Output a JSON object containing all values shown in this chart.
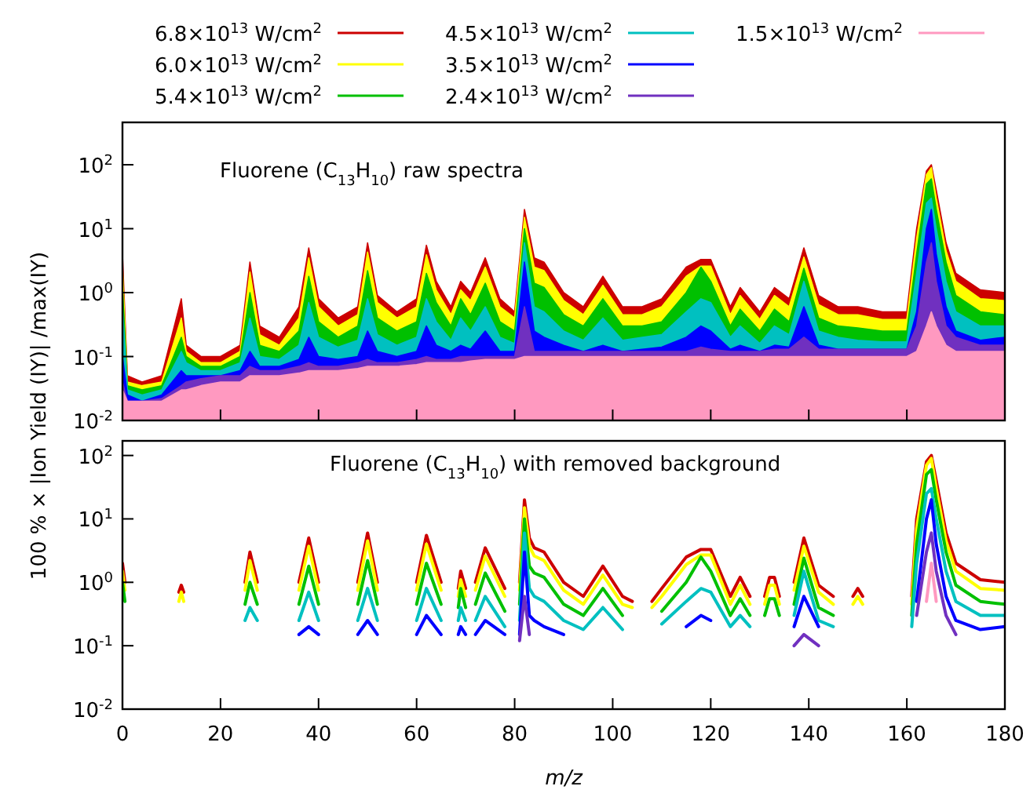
{
  "chart_data": [
    {
      "type": "area",
      "annotations": [
        "Fluorene (C$_{13}$H$_{10}$) raw spectra"
      ],
      "ylabel": "100 % × |Ion Yield (IY)| /max(IY)",
      "log": "y",
      "legend": "top",
      "tick_labels": "y",
      "xlim": [
        0,
        180
      ],
      "xticks": [
        0,
        20,
        40,
        60,
        80,
        100,
        120,
        140,
        160,
        180
      ],
      "ylim": [
        0.01,
        460
      ],
      "yticks": [
        {
          "value": 0.01,
          "label": "10$^{-2}$"
        },
        {
          "value": 0.1,
          "label": "10$^{-1}$"
        },
        {
          "value": 1,
          "label": "10$^{0}$"
        },
        {
          "value": 10,
          "label": "10$^{1}$"
        },
        {
          "value": 100,
          "label": "10$^{2}$"
        }
      ],
      "x": [
        0,
        1,
        4,
        8,
        12,
        13,
        16,
        20,
        24,
        26,
        28,
        32,
        36,
        38,
        40,
        44,
        48,
        50,
        52,
        56,
        60,
        62,
        64,
        67,
        69,
        71,
        74,
        77,
        80,
        82,
        84,
        86,
        90,
        94,
        98,
        102,
        106,
        110,
        115,
        118,
        120,
        124,
        126,
        130,
        133,
        136,
        139,
        142,
        146,
        150,
        155,
        160,
        162,
        164,
        165,
        166,
        168,
        170,
        175,
        180
      ],
      "series": [
        {
          "name": "6.8×10$^{13}$ W/cm$^{2}$",
          "color": "#cc0000",
          "values": [
            3.9,
            0.05,
            0.04,
            0.05,
            0.8,
            0.15,
            0.1,
            0.1,
            0.15,
            3,
            0.3,
            0.2,
            0.6,
            5,
            0.8,
            0.4,
            0.6,
            6,
            0.9,
            0.5,
            0.8,
            5.5,
            1.5,
            0.6,
            1.5,
            1,
            3.5,
            0.8,
            0.5,
            20,
            3.5,
            3,
            1,
            0.6,
            1.8,
            0.6,
            0.6,
            0.8,
            2.5,
            3.3,
            3.3,
            0.6,
            1.2,
            0.5,
            1.2,
            0.8,
            5,
            0.9,
            0.6,
            0.6,
            0.5,
            0.5,
            10,
            80,
            100,
            40,
            6,
            2,
            1.1,
            1
          ]
        },
        {
          "name": "6.0×10$^{13}$ W/cm$^{2}$",
          "color": "#ffff00",
          "values": [
            2.5,
            0.04,
            0.035,
            0.04,
            0.4,
            0.12,
            0.08,
            0.08,
            0.12,
            2.1,
            0.22,
            0.15,
            0.4,
            3.5,
            0.6,
            0.3,
            0.45,
            4.3,
            0.7,
            0.4,
            0.6,
            3.9,
            1.1,
            0.45,
            1.1,
            0.75,
            2.5,
            0.6,
            0.4,
            15,
            2.5,
            2.2,
            0.75,
            0.45,
            1.3,
            0.45,
            0.45,
            0.6,
            1.8,
            2.6,
            2.6,
            0.45,
            0.9,
            0.38,
            0.9,
            0.6,
            3.6,
            0.65,
            0.45,
            0.45,
            0.38,
            0.38,
            7,
            70,
            90,
            30,
            4.5,
            1.5,
            0.8,
            0.75
          ]
        },
        {
          "name": "5.4×10$^{13}$ W/cm$^{2}$",
          "color": "#00c000",
          "values": [
            1.2,
            0.035,
            0.03,
            0.035,
            0.2,
            0.1,
            0.07,
            0.07,
            0.1,
            1,
            0.15,
            0.12,
            0.25,
            1.8,
            0.35,
            0.2,
            0.3,
            2.2,
            0.4,
            0.25,
            0.35,
            2,
            0.7,
            0.3,
            0.8,
            0.45,
            1.4,
            0.35,
            0.25,
            10,
            1.4,
            1.2,
            0.45,
            0.3,
            0.8,
            0.3,
            0.3,
            0.35,
            1,
            2.5,
            1.5,
            0.3,
            0.55,
            0.25,
            0.55,
            0.35,
            2.4,
            0.4,
            0.3,
            0.28,
            0.25,
            0.25,
            4,
            50,
            60,
            20,
            3,
            0.9,
            0.5,
            0.45
          ]
        },
        {
          "name": "4.5×10$^{13}$ W/cm$^{2}$",
          "color": "#00c0c0",
          "values": [
            0.6,
            0.03,
            0.025,
            0.03,
            0.12,
            0.08,
            0.06,
            0.06,
            0.08,
            0.4,
            0.1,
            0.09,
            0.15,
            0.7,
            0.2,
            0.14,
            0.18,
            0.8,
            0.22,
            0.15,
            0.2,
            0.8,
            0.35,
            0.18,
            0.4,
            0.25,
            0.6,
            0.2,
            0.16,
            6,
            0.6,
            0.5,
            0.25,
            0.18,
            0.4,
            0.18,
            0.2,
            0.22,
            0.5,
            0.8,
            0.7,
            0.2,
            0.3,
            0.16,
            0.3,
            0.22,
            1.5,
            0.25,
            0.2,
            0.18,
            0.17,
            0.17,
            2,
            25,
            30,
            10,
            1.5,
            0.5,
            0.3,
            0.3
          ]
        },
        {
          "name": "3.5×10$^{13}$ W/cm$^{2}$",
          "color": "#0000ff",
          "values": [
            0.1,
            0.025,
            0.02,
            0.025,
            0.06,
            0.05,
            0.05,
            0.05,
            0.06,
            0.12,
            0.07,
            0.07,
            0.09,
            0.2,
            0.1,
            0.09,
            0.1,
            0.25,
            0.12,
            0.1,
            0.12,
            0.3,
            0.15,
            0.12,
            0.15,
            0.13,
            0.25,
            0.12,
            0.12,
            3,
            0.25,
            0.2,
            0.15,
            0.12,
            0.15,
            0.12,
            0.13,
            0.14,
            0.2,
            0.3,
            0.25,
            0.13,
            0.15,
            0.12,
            0.15,
            0.14,
            0.6,
            0.15,
            0.13,
            0.13,
            0.13,
            0.13,
            0.5,
            10,
            20,
            4,
            0.6,
            0.25,
            0.18,
            0.2
          ]
        },
        {
          "name": "2.4×10$^{13}$ W/cm$^{2}$",
          "color": "#7030c0",
          "values": [
            0.04,
            0.02,
            0.02,
            0.022,
            0.035,
            0.04,
            0.045,
            0.05,
            0.05,
            0.07,
            0.06,
            0.06,
            0.07,
            0.08,
            0.07,
            0.07,
            0.08,
            0.09,
            0.08,
            0.08,
            0.09,
            0.1,
            0.09,
            0.09,
            0.1,
            0.1,
            0.1,
            0.1,
            0.1,
            0.6,
            0.12,
            0.12,
            0.12,
            0.12,
            0.12,
            0.12,
            0.12,
            0.12,
            0.12,
            0.14,
            0.13,
            0.12,
            0.12,
            0.12,
            0.13,
            0.13,
            0.2,
            0.13,
            0.13,
            0.13,
            0.13,
            0.13,
            0.3,
            3,
            6,
            1.5,
            0.3,
            0.2,
            0.15,
            0.15
          ]
        },
        {
          "name": "1.5×10$^{13}$ W/cm$^{2}$",
          "color": "#ff99c0",
          "values": [
            0.03,
            0.02,
            0.02,
            0.02,
            0.03,
            0.03,
            0.035,
            0.04,
            0.04,
            0.05,
            0.05,
            0.05,
            0.055,
            0.06,
            0.06,
            0.06,
            0.065,
            0.07,
            0.07,
            0.07,
            0.075,
            0.08,
            0.08,
            0.08,
            0.08,
            0.085,
            0.09,
            0.09,
            0.09,
            0.1,
            0.1,
            0.1,
            0.1,
            0.1,
            0.1,
            0.1,
            0.1,
            0.1,
            0.1,
            0.1,
            0.1,
            0.1,
            0.1,
            0.1,
            0.1,
            0.1,
            0.1,
            0.1,
            0.1,
            0.1,
            0.1,
            0.1,
            0.12,
            0.3,
            0.5,
            0.3,
            0.15,
            0.12,
            0.12,
            0.12
          ]
        }
      ]
    },
    {
      "type": "line",
      "annotations": [
        "Fluorene (C$_{13}$H$_{10}$) with removed background"
      ],
      "xlabel": "m/z",
      "log": "y",
      "xlim": [
        0,
        180
      ],
      "xticks": [
        0,
        20,
        40,
        60,
        80,
        100,
        120,
        140,
        160,
        180
      ],
      "ylim": [
        0.01,
        170
      ],
      "yticks": [
        {
          "value": 0.01,
          "label": "10$^{-2}$"
        },
        {
          "value": 0.1,
          "label": "10$^{-1}$"
        },
        {
          "value": 1,
          "label": "10$^{0}$"
        },
        {
          "value": 10,
          "label": "10$^{1}$"
        },
        {
          "value": 100,
          "label": "10$^{2}$"
        }
      ],
      "x": [
        0,
        0.5,
        6,
        11.5,
        12,
        12.5,
        19,
        25,
        26,
        27.5,
        31,
        36,
        38,
        40,
        44,
        48,
        50,
        52,
        53.5,
        54.5,
        55,
        57,
        60,
        62,
        65,
        67,
        68.5,
        69,
        70,
        71,
        72,
        74,
        78,
        80,
        81,
        82,
        83,
        84,
        86,
        90,
        94,
        98,
        102,
        104,
        106,
        108,
        110,
        115,
        118,
        120,
        124,
        126,
        128,
        129.5,
        131,
        132,
        133,
        134,
        135.5,
        137,
        139,
        142,
        145,
        147,
        149,
        150,
        151,
        155,
        161,
        162,
        164,
        165,
        166,
        168,
        170,
        175,
        180
      ],
      "series": [
        {
          "color": "#cc0000",
          "values": [
            2,
            1,
            null,
            0.7,
            0.9,
            0.7,
            null,
            1,
            3,
            1,
            null,
            1,
            5,
            1,
            null,
            1,
            6,
            1,
            null,
            null,
            null,
            null,
            1,
            5.5,
            1,
            null,
            0.8,
            1.5,
            0.8,
            null,
            1,
            3.5,
            0.8,
            null,
            1,
            20,
            5,
            3.5,
            3,
            1,
            0.6,
            1.8,
            0.6,
            0.5,
            null,
            0.5,
            0.8,
            2.5,
            3.3,
            3.3,
            0.6,
            1.2,
            0.6,
            null,
            0.6,
            1.2,
            1.2,
            0.6,
            null,
            1,
            5,
            0.9,
            0.6,
            null,
            0.6,
            0.8,
            0.6,
            null,
            0.6,
            10,
            80,
            100,
            40,
            6,
            2,
            1.1,
            1
          ]
        },
        {
          "color": "#ffff00",
          "values": [
            1.5,
            0.75,
            null,
            0.5,
            0.7,
            0.5,
            null,
            0.75,
            2.2,
            0.75,
            null,
            0.75,
            3.7,
            0.75,
            null,
            0.75,
            4.5,
            0.75,
            null,
            null,
            null,
            null,
            0.75,
            4,
            0.75,
            null,
            0.6,
            1.1,
            0.6,
            null,
            0.75,
            2.6,
            0.6,
            null,
            0.75,
            15,
            3.7,
            2.6,
            2.2,
            0.75,
            0.45,
            1.3,
            0.45,
            0.4,
            null,
            0.4,
            0.6,
            1.9,
            2.7,
            2.7,
            0.45,
            0.9,
            0.45,
            null,
            0.45,
            0.9,
            0.9,
            0.45,
            null,
            0.75,
            3.7,
            0.7,
            0.45,
            null,
            0.45,
            0.6,
            0.45,
            null,
            0.45,
            7,
            70,
            90,
            30,
            4.5,
            1.5,
            0.8,
            0.75
          ]
        },
        {
          "color": "#00c000",
          "values": [
            1,
            0.5,
            null,
            null,
            null,
            null,
            null,
            0.45,
            1,
            0.45,
            null,
            0.45,
            1.8,
            0.45,
            null,
            0.45,
            2.2,
            0.45,
            null,
            null,
            null,
            null,
            0.45,
            2,
            0.45,
            null,
            0.4,
            0.8,
            0.4,
            null,
            0.45,
            1.4,
            0.35,
            null,
            0.45,
            10,
            1.8,
            1.4,
            1.2,
            0.45,
            0.3,
            0.8,
            0.3,
            null,
            null,
            null,
            0.35,
            1,
            2.5,
            1.5,
            0.3,
            0.55,
            0.3,
            null,
            0.3,
            0.55,
            0.55,
            0.3,
            null,
            0.45,
            2.4,
            0.4,
            0.3,
            null,
            null,
            null,
            null,
            null,
            0.3,
            4,
            50,
            60,
            20,
            3,
            0.9,
            0.5,
            0.45
          ]
        },
        {
          "color": "#00c0c0",
          "values": [
            null,
            null,
            null,
            null,
            null,
            null,
            null,
            0.25,
            0.4,
            0.25,
            null,
            0.25,
            0.7,
            0.25,
            null,
            0.25,
            0.8,
            0.25,
            null,
            null,
            null,
            null,
            0.25,
            0.8,
            0.25,
            null,
            0.25,
            0.4,
            0.25,
            null,
            0.25,
            0.6,
            0.2,
            null,
            0.25,
            6,
            0.8,
            0.6,
            0.5,
            0.25,
            0.18,
            0.4,
            0.18,
            null,
            null,
            null,
            0.22,
            0.5,
            0.8,
            0.7,
            0.2,
            0.3,
            0.2,
            null,
            null,
            null,
            null,
            null,
            null,
            0.3,
            1.5,
            0.25,
            0.2,
            null,
            null,
            null,
            null,
            null,
            0.2,
            2,
            25,
            30,
            10,
            1.5,
            0.5,
            0.3,
            0.3
          ]
        },
        {
          "color": "#0000ff",
          "values": [
            null,
            null,
            null,
            null,
            null,
            null,
            null,
            null,
            null,
            null,
            null,
            0.15,
            0.2,
            0.15,
            null,
            0.15,
            0.25,
            0.15,
            null,
            null,
            null,
            null,
            0.15,
            0.3,
            0.15,
            null,
            0.15,
            0.2,
            0.15,
            null,
            0.15,
            0.25,
            0.15,
            null,
            0.15,
            3,
            0.3,
            0.25,
            0.2,
            0.15,
            null,
            null,
            null,
            null,
            null,
            null,
            null,
            0.2,
            0.3,
            0.25,
            null,
            null,
            null,
            null,
            null,
            null,
            null,
            null,
            null,
            0.2,
            0.6,
            0.2,
            null,
            null,
            null,
            null,
            null,
            null,
            null,
            0.5,
            10,
            20,
            4,
            0.6,
            0.25,
            0.18,
            0.2
          ]
        },
        {
          "color": "#7030c0",
          "values": [
            null,
            null,
            null,
            null,
            null,
            null,
            null,
            null,
            null,
            null,
            null,
            null,
            null,
            null,
            null,
            null,
            null,
            null,
            null,
            null,
            null,
            null,
            null,
            null,
            null,
            null,
            null,
            null,
            null,
            null,
            null,
            null,
            null,
            null,
            0.12,
            0.6,
            0.15,
            null,
            null,
            null,
            null,
            null,
            null,
            null,
            null,
            null,
            null,
            null,
            null,
            null,
            null,
            null,
            null,
            null,
            null,
            null,
            null,
            null,
            null,
            0.1,
            0.15,
            0.1,
            null,
            null,
            null,
            null,
            null,
            null,
            null,
            0.3,
            3,
            6,
            1.5,
            0.3,
            0.15,
            null,
            null
          ]
        },
        {
          "color": "#ff99c0",
          "values": [
            null,
            null,
            null,
            null,
            null,
            null,
            null,
            null,
            null,
            null,
            null,
            null,
            null,
            null,
            null,
            null,
            null,
            null,
            null,
            null,
            null,
            null,
            null,
            null,
            null,
            null,
            null,
            null,
            null,
            null,
            null,
            null,
            null,
            null,
            null,
            null,
            null,
            null,
            null,
            null,
            null,
            null,
            null,
            null,
            null,
            null,
            null,
            null,
            null,
            null,
            null,
            null,
            null,
            null,
            null,
            null,
            null,
            null,
            null,
            null,
            null,
            null,
            null,
            null,
            null,
            null,
            null,
            null,
            null,
            null,
            0.5,
            2,
            0.5,
            null,
            null,
            null,
            null
          ]
        }
      ]
    }
  ]
}
